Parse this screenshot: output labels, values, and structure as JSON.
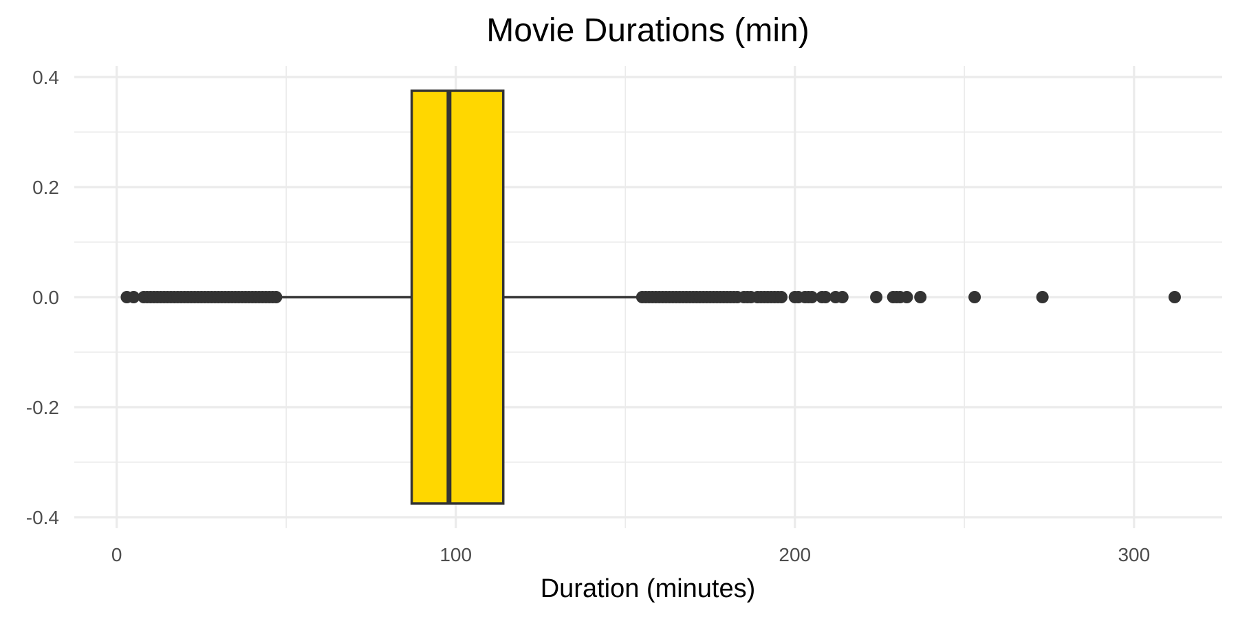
{
  "chart_data": {
    "type": "boxplot",
    "title": "Movie Durations (min)",
    "xlabel": "Duration (minutes)",
    "ylabel": "",
    "x_ticks": [
      0,
      100,
      200,
      300
    ],
    "x_tick_labels": [
      "0",
      "100",
      "200",
      "300"
    ],
    "y_ticks": [
      -0.4,
      -0.2,
      0.0,
      0.2,
      0.4
    ],
    "y_tick_labels": [
      "-0.4",
      "-0.2",
      "0.0",
      "0.2",
      "0.4"
    ],
    "xlim": [
      -12.5,
      326
    ],
    "ylim": [
      -0.42,
      0.42
    ],
    "grid": true,
    "legend": "none",
    "box": {
      "q1": 87,
      "median": 98,
      "q3": 114,
      "whisker_low": 48,
      "whisker_high": 154,
      "y": 0,
      "half_height": 0.375,
      "fill": "#FFD700",
      "stroke": "#333333"
    },
    "outliers": [
      3,
      5,
      8,
      9,
      10,
      11,
      12,
      13,
      14,
      15,
      16,
      17,
      18,
      19,
      20,
      21,
      22,
      23,
      24,
      25,
      26,
      27,
      28,
      29,
      30,
      31,
      32,
      33,
      34,
      35,
      36,
      37,
      38,
      39,
      40,
      41,
      42,
      43,
      44,
      45,
      46,
      47,
      155,
      156,
      157,
      158,
      159,
      160,
      161,
      162,
      163,
      164,
      165,
      166,
      167,
      168,
      169,
      170,
      171,
      172,
      173,
      174,
      175,
      176,
      177,
      178,
      179,
      180,
      181,
      182,
      183,
      185,
      186,
      187,
      189,
      190,
      191,
      192,
      193,
      194,
      195,
      196,
      200,
      201,
      203,
      204,
      205,
      208,
      209,
      212,
      214,
      224,
      229,
      230,
      231,
      233,
      237,
      253,
      273,
      312
    ],
    "point_color": "#333333",
    "grid_color": "#ebebeb"
  }
}
